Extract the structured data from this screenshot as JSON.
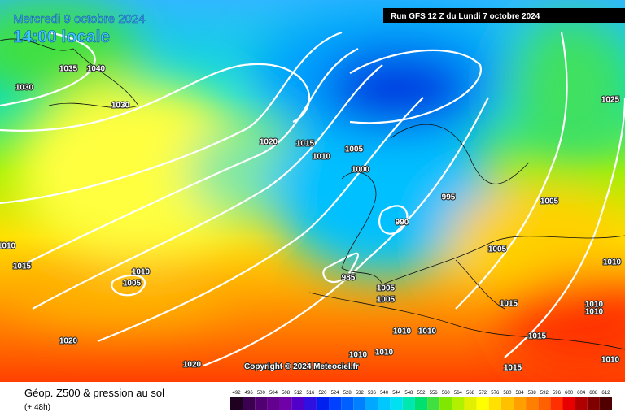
{
  "header": {
    "date": "Mercredi 9 octobre 2024",
    "time": "14:00 locale",
    "run": "Run GFS 12 Z du Lundi 7 octobre 2024"
  },
  "isobar_labels": [
    1035,
    1040,
    1030,
    1030,
    1020,
    1015,
    1010,
    1005,
    1000,
    995,
    990,
    1005,
    1005,
    1025,
    1010,
    1015,
    1010,
    1005,
    985,
    1005,
    1005,
    1015,
    1010,
    1010,
    1010,
    1010,
    1010,
    1015,
    1010,
    1010,
    1015,
    1020,
    1020,
    1010
  ],
  "copyright": "Copyright © 2024 Meteociel.fr",
  "footer": {
    "title": "Géop. Z500 & pression au sol",
    "lead": "(+ 48h)"
  },
  "scale": {
    "values": [
      492,
      496,
      500,
      504,
      508,
      512,
      516,
      520,
      524,
      528,
      532,
      536,
      540,
      544,
      548,
      552,
      556,
      560,
      564,
      568,
      572,
      576,
      580,
      584,
      588,
      592,
      596,
      600,
      604,
      608,
      612
    ],
    "colors": [
      "#200020",
      "#3c0050",
      "#500070",
      "#640090",
      "#7000a8",
      "#5000c8",
      "#3010e0",
      "#0020f0",
      "#0040ff",
      "#0060ff",
      "#0080ff",
      "#00a8ff",
      "#00c8ff",
      "#00e0f0",
      "#00e8b0",
      "#00e070",
      "#40e040",
      "#80e800",
      "#b0f000",
      "#e0f000",
      "#ffff00",
      "#ffe000",
      "#ffc000",
      "#ffa000",
      "#ff8000",
      "#ff6000",
      "#ff3000",
      "#e80000",
      "#b00000",
      "#800000",
      "#500000"
    ]
  }
}
